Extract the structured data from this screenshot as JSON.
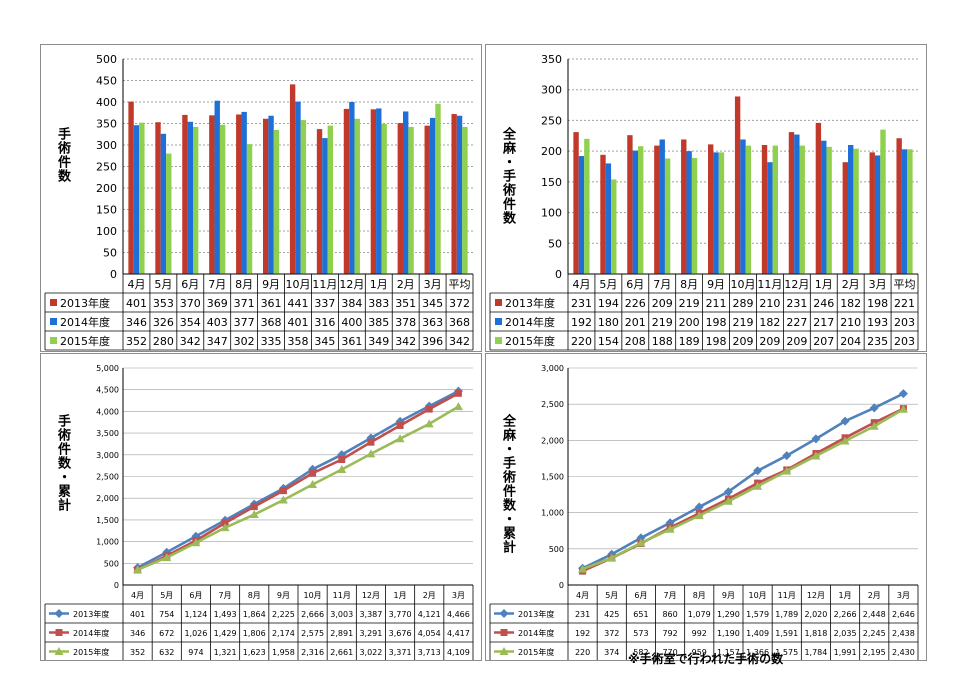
{
  "note": "※手術室で行われた手術の数",
  "colors": {
    "y2013": "#c0392b",
    "y2014": "#1f6fd8",
    "y2015": "#8fd14f",
    "line2013": "#4f81bd",
    "line2014": "#c0504d",
    "line2015": "#9bbb59",
    "grid": "#a0a0a0"
  },
  "chart_data": [
    {
      "type": "bar",
      "ylabel": "手術件数",
      "ylim": [
        0,
        500
      ],
      "yticks": [
        "0",
        "50",
        "100",
        "150",
        "200",
        "250",
        "300",
        "350",
        "400",
        "450",
        "500"
      ],
      "categories": [
        "4月",
        "5月",
        "6月",
        "7月",
        "8月",
        "9月",
        "10月",
        "11月",
        "12月",
        "1月",
        "2月",
        "3月",
        "平均"
      ],
      "series": [
        {
          "name": "2013年度",
          "values": [
            401,
            353,
            370,
            369,
            371,
            361,
            441,
            337,
            384,
            383,
            351,
            345,
            372
          ]
        },
        {
          "name": "2014年度",
          "values": [
            346,
            326,
            354,
            403,
            377,
            368,
            401,
            316,
            400,
            385,
            378,
            363,
            368
          ]
        },
        {
          "name": "2015年度",
          "values": [
            352,
            280,
            342,
            347,
            302,
            335,
            358,
            345,
            361,
            349,
            342,
            396,
            342
          ]
        }
      ]
    },
    {
      "type": "bar",
      "ylabel": "全麻・手術件数",
      "ylim": [
        0,
        350
      ],
      "yticks": [
        "0",
        "50",
        "100",
        "150",
        "200",
        "250",
        "300",
        "350"
      ],
      "categories": [
        "4月",
        "5月",
        "6月",
        "7月",
        "8月",
        "9月",
        "10月",
        "11月",
        "12月",
        "1月",
        "2月",
        "3月",
        "平均"
      ],
      "series": [
        {
          "name": "2013年度",
          "values": [
            231,
            194,
            226,
            209,
            219,
            211,
            289,
            210,
            231,
            246,
            182,
            198,
            221
          ]
        },
        {
          "name": "2014年度",
          "values": [
            192,
            180,
            201,
            219,
            200,
            198,
            219,
            182,
            227,
            217,
            210,
            193,
            203
          ]
        },
        {
          "name": "2015年度",
          "values": [
            220,
            154,
            208,
            188,
            189,
            198,
            209,
            209,
            209,
            207,
            204,
            235,
            203
          ]
        }
      ]
    },
    {
      "type": "line",
      "ylabel": "手術件数・累計",
      "ylim": [
        0,
        5000
      ],
      "yticks": [
        "0",
        "500",
        "1,000",
        "1,500",
        "2,000",
        "2,500",
        "3,000",
        "3,500",
        "4,000",
        "4,500",
        "5,000"
      ],
      "categories": [
        "4月",
        "5月",
        "6月",
        "7月",
        "8月",
        "9月",
        "10月",
        "11月",
        "12月",
        "1月",
        "2月",
        "3月"
      ],
      "series": [
        {
          "name": "2013年度",
          "values": [
            401,
            754,
            1124,
            1493,
            1864,
            2225,
            2666,
            3003,
            3387,
            3770,
            4121,
            4466
          ],
          "labels": [
            "401",
            "754",
            "1,124",
            "1,493",
            "1,864",
            "2,225",
            "2,666",
            "3,003",
            "3,387",
            "3,770",
            "4,121",
            "4,466"
          ]
        },
        {
          "name": "2014年度",
          "values": [
            346,
            672,
            1026,
            1429,
            1806,
            2174,
            2575,
            2891,
            3291,
            3676,
            4054,
            4417
          ],
          "labels": [
            "346",
            "672",
            "1,026",
            "1,429",
            "1,806",
            "2,174",
            "2,575",
            "2,891",
            "3,291",
            "3,676",
            "4,054",
            "4,417"
          ]
        },
        {
          "name": "2015年度",
          "values": [
            352,
            632,
            974,
            1321,
            1623,
            1958,
            2316,
            2661,
            3022,
            3371,
            3713,
            4109
          ],
          "labels": [
            "352",
            "632",
            "974",
            "1,321",
            "1,623",
            "1,958",
            "2,316",
            "2,661",
            "3,022",
            "3,371",
            "3,713",
            "4,109"
          ]
        }
      ]
    },
    {
      "type": "line",
      "ylabel": "全麻・手術件数・累計",
      "ylim": [
        0,
        3000
      ],
      "yticks": [
        "0",
        "500",
        "1,000",
        "1,500",
        "2,000",
        "2,500",
        "3,000"
      ],
      "categories": [
        "4月",
        "5月",
        "6月",
        "7月",
        "8月",
        "9月",
        "10月",
        "11月",
        "12月",
        "1月",
        "2月",
        "3月"
      ],
      "series": [
        {
          "name": "2013年度",
          "values": [
            231,
            425,
            651,
            860,
            1079,
            1290,
            1579,
            1789,
            2020,
            2266,
            2448,
            2646
          ],
          "labels": [
            "231",
            "425",
            "651",
            "860",
            "1,079",
            "1,290",
            "1,579",
            "1,789",
            "2,020",
            "2,266",
            "2,448",
            "2,646"
          ]
        },
        {
          "name": "2014年度",
          "values": [
            192,
            372,
            573,
            792,
            992,
            1190,
            1409,
            1591,
            1818,
            2035,
            2245,
            2438
          ],
          "labels": [
            "192",
            "372",
            "573",
            "792",
            "992",
            "1,190",
            "1,409",
            "1,591",
            "1,818",
            "2,035",
            "2,245",
            "2,438"
          ]
        },
        {
          "name": "2015年度",
          "values": [
            220,
            374,
            582,
            770,
            959,
            1157,
            1366,
            1575,
            1784,
            1991,
            2195,
            2430
          ],
          "labels": [
            "220",
            "374",
            "582",
            "770",
            "959",
            "1,157",
            "1,366",
            "1,575",
            "1,784",
            "1,991",
            "2,195",
            "2,430"
          ]
        }
      ]
    }
  ]
}
